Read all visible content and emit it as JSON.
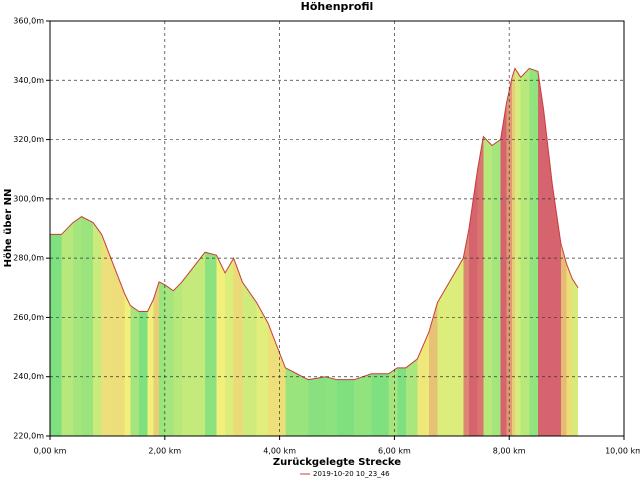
{
  "chart_data": {
    "type": "area",
    "title": "Höhenprofil",
    "x_label": "Zurückgelegte Strecke",
    "y_label": "Höhe über NN",
    "x": [
      0.0,
      0.2,
      0.4,
      0.55,
      0.75,
      0.9,
      1.1,
      1.3,
      1.4,
      1.55,
      1.7,
      1.8,
      1.9,
      2.0,
      2.15,
      2.3,
      2.5,
      2.7,
      2.9,
      3.05,
      3.2,
      3.35,
      3.6,
      3.8,
      4.0,
      4.1,
      4.3,
      4.5,
      4.8,
      5.0,
      5.3,
      5.6,
      5.9,
      6.05,
      6.2,
      6.4,
      6.6,
      6.75,
      6.9,
      7.05,
      7.2,
      7.3,
      7.45,
      7.55,
      7.7,
      7.85,
      7.95,
      8.05,
      8.1,
      8.2,
      8.35,
      8.5,
      8.6,
      8.75,
      8.9,
      9.0,
      9.1,
      9.2
    ],
    "series": [
      {
        "name": "2019-10-20 10_23_46",
        "color": "#c83c3c",
        "values": [
          288,
          288,
          292,
          294,
          292,
          288,
          278,
          268,
          264,
          262,
          262,
          266,
          272,
          271,
          269,
          272,
          277,
          282,
          281,
          275,
          280,
          272,
          265,
          258,
          248,
          243,
          241,
          239,
          240,
          239,
          239,
          241,
          241,
          243,
          243,
          246,
          255,
          265,
          270,
          275,
          280,
          290,
          310,
          321,
          318,
          320,
          332,
          341,
          344,
          341,
          344,
          343,
          330,
          305,
          285,
          278,
          273,
          270
        ]
      }
    ],
    "xlim": [
      0,
      10
    ],
    "ylim": [
      220,
      360
    ],
    "xticks": [
      {
        "value": 0,
        "label": "0,00 km"
      },
      {
        "value": 2,
        "label": "2,00 km"
      },
      {
        "value": 4,
        "label": "4,00 km"
      },
      {
        "value": 6,
        "label": "6,00 km"
      },
      {
        "value": 8,
        "label": "8,00 km"
      },
      {
        "value": 10,
        "label": "10,00 km"
      }
    ],
    "yticks": [
      {
        "value": 220,
        "label": "220,0m"
      },
      {
        "value": 240,
        "label": "240,0m"
      },
      {
        "value": 260,
        "label": "260,0m"
      },
      {
        "value": 280,
        "label": "280,0m"
      },
      {
        "value": 300,
        "label": "300,0m"
      },
      {
        "value": 320,
        "label": "320,0m"
      },
      {
        "value": 340,
        "label": "340,0m"
      },
      {
        "value": 360,
        "label": "360,0m"
      }
    ],
    "grid": true
  }
}
